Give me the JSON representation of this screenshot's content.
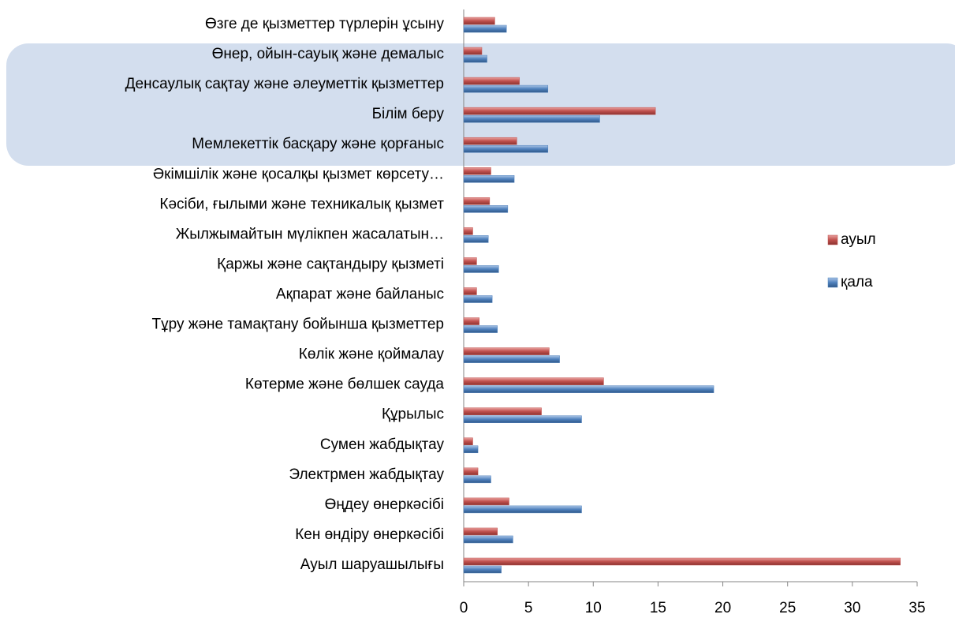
{
  "chart_data": {
    "type": "bar",
    "orientation": "horizontal",
    "categories": [
      "Өзге де қызметтер түрлерін ұсыну",
      "Өнер, ойын-сауық  және демалыс",
      "Денсаулық сақтау және әлеуметтік қызметтер",
      "Білім беру",
      "Мемлекеттік басқару және қорғаныс",
      "Әкімшілік және қосалқы қызмет көрсету…",
      "Кәсіби, ғылыми және техникалық қызмет",
      "Жылжымайтын мүлікпен жасалатын…",
      "Қаржы және сақтандыру қызметі",
      "Ақпарат және байланыс",
      "Тұру және тамақтану бойынша қызметтер",
      "Көлік және қоймалау",
      "Көтерме және бөлшек сауда",
      "Құрылыс",
      "Сумен жабдықтау",
      "Электрмен жабдықтау",
      "Өңдеу өнеркәсібі",
      "Кен өндіру өнеркәсібі",
      "Ауыл шаруашылығы"
    ],
    "series": [
      {
        "name": "ауыл",
        "color": "#c0504d",
        "values": [
          2.4,
          1.4,
          4.3,
          14.8,
          4.1,
          2.1,
          2.0,
          0.7,
          1.0,
          1.0,
          1.2,
          6.6,
          10.8,
          6.0,
          0.7,
          1.1,
          3.5,
          2.6,
          33.7
        ]
      },
      {
        "name": "қала",
        "color": "#4f81bd",
        "values": [
          3.3,
          1.8,
          6.5,
          10.5,
          6.5,
          3.9,
          3.4,
          1.9,
          2.7,
          2.2,
          2.6,
          7.4,
          19.3,
          9.1,
          1.1,
          2.1,
          9.1,
          3.8,
          2.9
        ]
      }
    ],
    "xlim": [
      0,
      35
    ],
    "xticks": [
      0,
      5,
      10,
      15,
      20,
      25,
      30,
      35
    ],
    "legend": "right"
  }
}
